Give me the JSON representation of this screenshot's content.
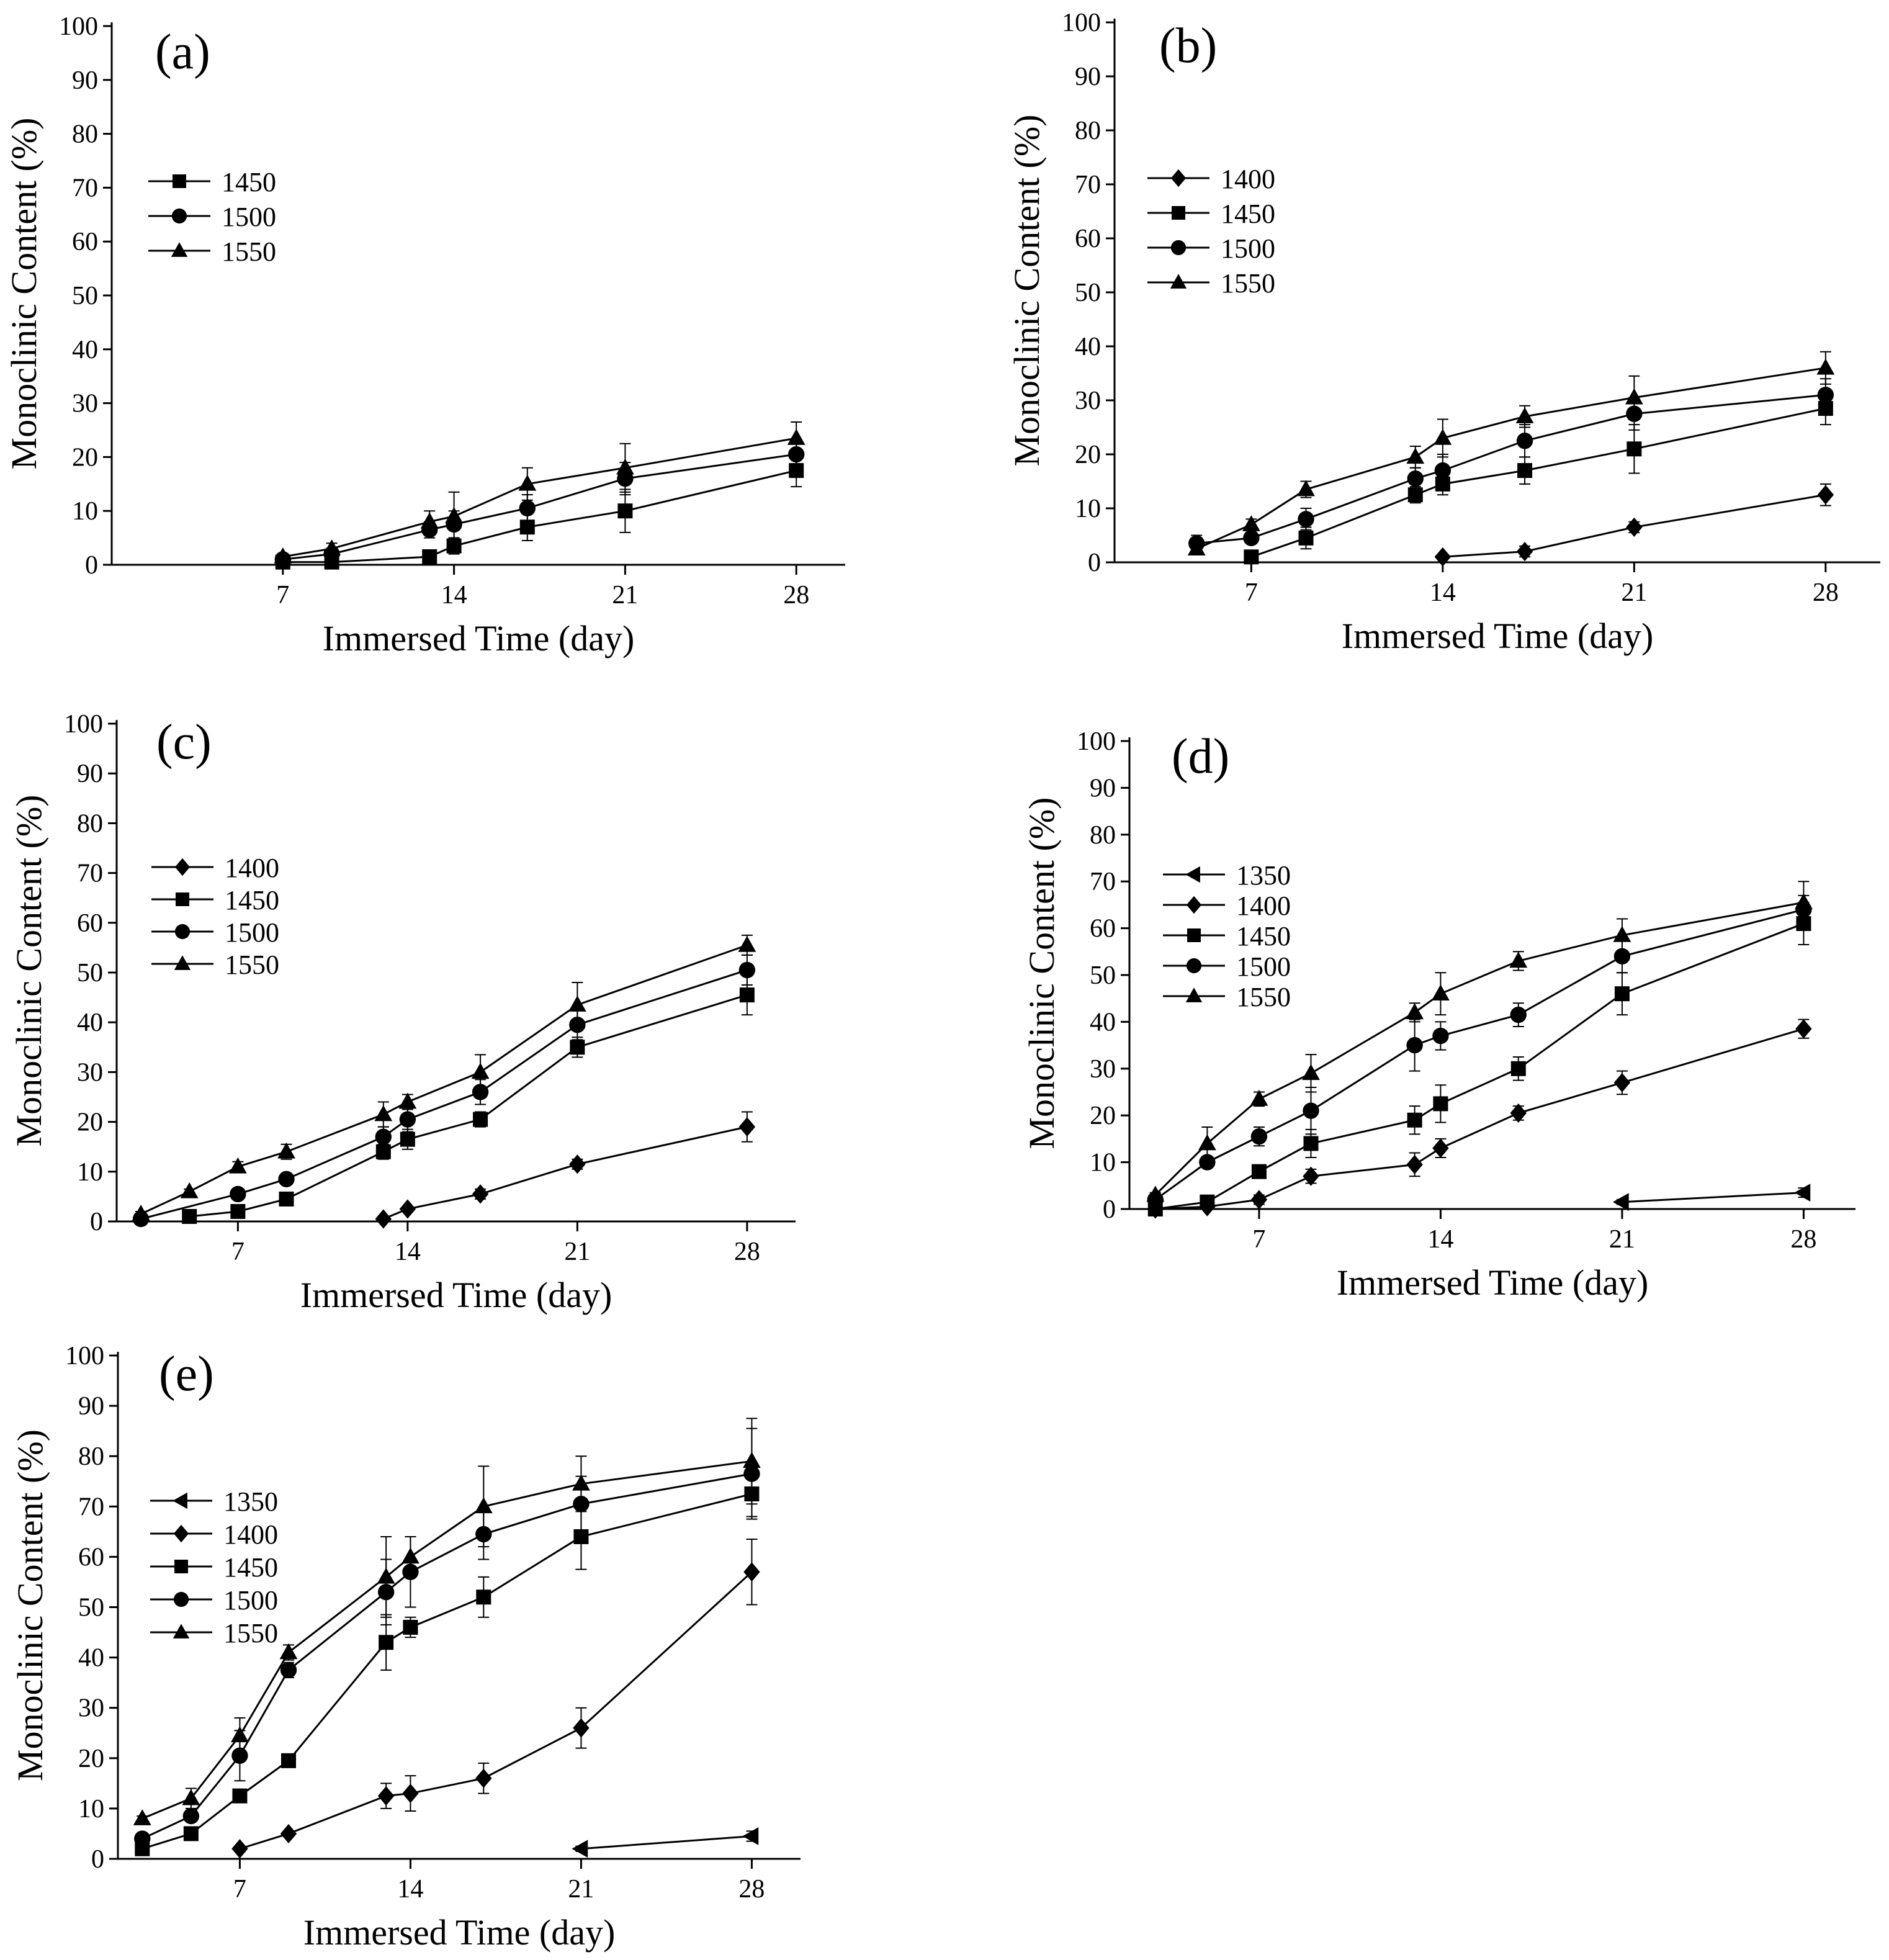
{
  "figure": {
    "panels": [
      {
        "id": "a",
        "label": "(a)"
      },
      {
        "id": "b",
        "label": "(b)"
      },
      {
        "id": "c",
        "label": "(c)"
      },
      {
        "id": "d",
        "label": "(d)"
      },
      {
        "id": "e",
        "label": "(e)"
      }
    ]
  },
  "chart_data": [
    {
      "panel": "(a)",
      "type": "line",
      "xlabel": "Immersed Time (day)",
      "ylabel": "Monoclinic Content (%)",
      "xlim": [
        0,
        30
      ],
      "ylim": [
        0,
        100
      ],
      "xticks": [
        7,
        14,
        21,
        28
      ],
      "yticks": [
        0,
        10,
        20,
        30,
        40,
        50,
        60,
        70,
        80,
        90,
        100
      ],
      "legend_position": "upper-left",
      "series": [
        {
          "name": "1450",
          "marker": "square",
          "points": [
            [
              7,
              0.5
            ],
            [
              9,
              0.5
            ],
            [
              13,
              1.5
            ],
            [
              14,
              3.5
            ],
            [
              17,
              7
            ],
            [
              21,
              10
            ],
            [
              28,
              17.5
            ]
          ],
          "errors": [
            0.5,
            0.5,
            1,
            1.5,
            2.5,
            4,
            3
          ]
        },
        {
          "name": "1500",
          "marker": "circle",
          "points": [
            [
              7,
              1
            ],
            [
              9,
              2
            ],
            [
              13,
              6.5
            ],
            [
              14,
              7.5
            ],
            [
              17,
              10.5
            ],
            [
              21,
              16
            ],
            [
              28,
              20.5
            ]
          ],
          "errors": [
            0.5,
            1,
            1.5,
            2.5,
            2.5,
            3,
            2
          ]
        },
        {
          "name": "1550",
          "marker": "triangle-up",
          "points": [
            [
              7,
              1.5
            ],
            [
              9,
              3
            ],
            [
              13,
              8
            ],
            [
              14,
              9
            ],
            [
              17,
              15
            ],
            [
              21,
              18
            ],
            [
              28,
              23.5
            ]
          ],
          "errors": [
            0.5,
            1,
            2,
            4.5,
            3,
            4.5,
            3
          ]
        }
      ]
    },
    {
      "panel": "(b)",
      "type": "line",
      "xlabel": "Immersed Time (day)",
      "ylabel": "Monoclinic Content (%)",
      "xlim": [
        2,
        30
      ],
      "ylim": [
        0,
        100
      ],
      "xticks": [
        7,
        14,
        21,
        28
      ],
      "yticks": [
        0,
        10,
        20,
        30,
        40,
        50,
        60,
        70,
        80,
        90,
        100
      ],
      "legend_position": "upper-left",
      "series": [
        {
          "name": "1400",
          "marker": "diamond",
          "points": [
            [
              14,
              1
            ],
            [
              17,
              2
            ],
            [
              21,
              6.5
            ],
            [
              28,
              12.5
            ]
          ],
          "errors": [
            0.5,
            1,
            1,
            2
          ]
        },
        {
          "name": "1450",
          "marker": "square",
          "points": [
            [
              7,
              1
            ],
            [
              9,
              4.5
            ],
            [
              13,
              12.5
            ],
            [
              14,
              14.5
            ],
            [
              17,
              17
            ],
            [
              21,
              21
            ],
            [
              28,
              28.5
            ]
          ],
          "errors": [
            0.5,
            2,
            1.5,
            2,
            2.5,
            4.5,
            3
          ]
        },
        {
          "name": "1500",
          "marker": "circle",
          "points": [
            [
              5,
              3.5
            ],
            [
              7,
              4.5
            ],
            [
              9,
              8
            ],
            [
              13,
              15.5
            ],
            [
              14,
              17
            ],
            [
              17,
              22.5
            ],
            [
              21,
              27.5
            ],
            [
              28,
              31
            ]
          ],
          "errors": [
            1.5,
            1,
            2,
            2,
            3,
            3,
            3,
            3
          ]
        },
        {
          "name": "1550",
          "marker": "triangle-up",
          "points": [
            [
              5,
              2.5
            ],
            [
              7,
              7
            ],
            [
              9,
              13.5
            ],
            [
              13,
              19.5
            ],
            [
              14,
              23
            ],
            [
              17,
              27
            ],
            [
              21,
              30.5
            ],
            [
              28,
              36
            ]
          ],
          "errors": [
            1,
            1,
            1.5,
            2,
            3.5,
            2,
            4,
            3
          ]
        }
      ]
    },
    {
      "panel": "(c)",
      "type": "line",
      "xlabel": "Immersed Time (day)",
      "ylabel": "Monoclinic Content (%)",
      "xlim": [
        2,
        30
      ],
      "ylim": [
        0,
        100
      ],
      "xticks": [
        7,
        14,
        21,
        28
      ],
      "yticks": [
        0,
        10,
        20,
        30,
        40,
        50,
        60,
        70,
        80,
        90,
        100
      ],
      "legend_position": "upper-left",
      "series": [
        {
          "name": "1400",
          "marker": "diamond",
          "points": [
            [
              13,
              0.5
            ],
            [
              14,
              2.5
            ],
            [
              17,
              5.5
            ],
            [
              21,
              11.5
            ],
            [
              28,
              19
            ]
          ],
          "errors": [
            0.5,
            0.5,
            1,
            1,
            3
          ]
        },
        {
          "name": "1450",
          "marker": "square",
          "points": [
            [
              5,
              1
            ],
            [
              7,
              2
            ],
            [
              9,
              4.5
            ],
            [
              13,
              14
            ],
            [
              14,
              16.5
            ],
            [
              17,
              20.5
            ],
            [
              21,
              35
            ],
            [
              28,
              45.5
            ]
          ],
          "errors": [
            0.5,
            0.5,
            1,
            1.5,
            2,
            1.5,
            2,
            4
          ]
        },
        {
          "name": "1500",
          "marker": "circle",
          "points": [
            [
              3,
              0.5
            ],
            [
              7,
              5.5
            ],
            [
              9,
              8.5
            ],
            [
              13,
              17
            ],
            [
              14,
              20.5
            ],
            [
              17,
              26
            ],
            [
              21,
              39.5
            ],
            [
              28,
              50.5
            ]
          ],
          "errors": [
            0.5,
            1,
            1,
            2,
            2.5,
            2.5,
            3,
            3
          ]
        },
        {
          "name": "1550",
          "marker": "triangle-up",
          "points": [
            [
              3,
              1.5
            ],
            [
              5,
              6
            ],
            [
              7,
              11
            ],
            [
              9,
              14
            ],
            [
              13,
              21.5
            ],
            [
              14,
              24
            ],
            [
              17,
              30
            ],
            [
              21,
              43.5
            ],
            [
              28,
              55.5
            ]
          ],
          "errors": [
            0.5,
            0.5,
            1,
            1.5,
            2.5,
            1.5,
            3.5,
            4.5,
            2
          ]
        }
      ]
    },
    {
      "panel": "(d)",
      "type": "line",
      "xlabel": "Immersed Time (day)",
      "ylabel": "Monoclinic Content (%)",
      "xlim": [
        2,
        30
      ],
      "ylim": [
        0,
        100
      ],
      "xticks": [
        7,
        14,
        21,
        28
      ],
      "yticks": [
        0,
        10,
        20,
        30,
        40,
        50,
        60,
        70,
        80,
        90,
        100
      ],
      "legend_position": "upper-left",
      "series": [
        {
          "name": "1350",
          "marker": "triangle-left",
          "points": [
            [
              21,
              1.5
            ],
            [
              28,
              3.5
            ]
          ],
          "errors": [
            0.5,
            1
          ]
        },
        {
          "name": "1400",
          "marker": "diamond",
          "points": [
            [
              3,
              0
            ],
            [
              5,
              0.5
            ],
            [
              7,
              2
            ],
            [
              9,
              7
            ],
            [
              13,
              9.5
            ],
            [
              14,
              13
            ],
            [
              17,
              20.5
            ],
            [
              21,
              27
            ],
            [
              28,
              38.5
            ]
          ],
          "errors": [
            0.5,
            0.5,
            1,
            1.5,
            2.5,
            2,
            1.5,
            2.5,
            2
          ]
        },
        {
          "name": "1450",
          "marker": "square",
          "points": [
            [
              3,
              0
            ],
            [
              5,
              1.5
            ],
            [
              7,
              8
            ],
            [
              9,
              14
            ],
            [
              13,
              19
            ],
            [
              14,
              22.5
            ],
            [
              17,
              30
            ],
            [
              21,
              46
            ],
            [
              28,
              61
            ]
          ],
          "errors": [
            0.5,
            0.5,
            1,
            3,
            3,
            4,
            2.5,
            4.5,
            4.5
          ]
        },
        {
          "name": "1500",
          "marker": "circle",
          "points": [
            [
              3,
              2
            ],
            [
              5,
              10
            ],
            [
              7,
              15.5
            ],
            [
              9,
              21
            ],
            [
              13,
              35
            ],
            [
              14,
              37
            ],
            [
              17,
              41.5
            ],
            [
              21,
              54
            ],
            [
              28,
              64
            ]
          ],
          "errors": [
            0.5,
            1,
            2,
            5,
            5.5,
            3,
            2.5,
            3.5,
            3
          ]
        },
        {
          "name": "1550",
          "marker": "triangle-up",
          "points": [
            [
              3,
              3
            ],
            [
              5,
              14
            ],
            [
              7,
              23.5
            ],
            [
              9,
              29
            ],
            [
              13,
              42
            ],
            [
              14,
              46
            ],
            [
              17,
              53
            ],
            [
              21,
              58.5
            ],
            [
              28,
              65.5
            ]
          ],
          "errors": [
            0.5,
            3.5,
            1.5,
            4,
            2,
            4.5,
            2,
            3.5,
            4.5
          ]
        }
      ]
    },
    {
      "panel": "(e)",
      "type": "line",
      "xlabel": "Immersed Time (day)",
      "ylabel": "Monoclinic Content (%)",
      "xlim": [
        2,
        30
      ],
      "ylim": [
        0,
        100
      ],
      "xticks": [
        7,
        14,
        21,
        28
      ],
      "yticks": [
        0,
        10,
        20,
        30,
        40,
        50,
        60,
        70,
        80,
        90,
        100
      ],
      "legend_position": "upper-left",
      "series": [
        {
          "name": "1350",
          "marker": "triangle-left",
          "points": [
            [
              21,
              2
            ],
            [
              28,
              4.5
            ]
          ],
          "errors": [
            0.5,
            1
          ]
        },
        {
          "name": "1400",
          "marker": "diamond",
          "points": [
            [
              7,
              2
            ],
            [
              9,
              5
            ],
            [
              13,
              12.5
            ],
            [
              14,
              13
            ],
            [
              17,
              16
            ],
            [
              21,
              26
            ],
            [
              28,
              57
            ]
          ],
          "errors": [
            0.5,
            0.5,
            2.5,
            3.5,
            3,
            4,
            6.5
          ]
        },
        {
          "name": "1450",
          "marker": "square",
          "points": [
            [
              3,
              2
            ],
            [
              5,
              5
            ],
            [
              7,
              12.5
            ],
            [
              9,
              19.5
            ],
            [
              13,
              43
            ],
            [
              14,
              46
            ],
            [
              17,
              52
            ],
            [
              21,
              64
            ],
            [
              28,
              72.5
            ]
          ],
          "errors": [
            0.5,
            1,
            1,
            1,
            5.5,
            2,
            4,
            6.5,
            4.5
          ]
        },
        {
          "name": "1500",
          "marker": "circle",
          "points": [
            [
              3,
              4
            ],
            [
              5,
              8.5
            ],
            [
              7,
              20.5
            ],
            [
              9,
              37.5
            ],
            [
              13,
              53
            ],
            [
              14,
              57
            ],
            [
              17,
              64.5
            ],
            [
              21,
              70.5
            ],
            [
              28,
              76.5
            ]
          ],
          "errors": [
            0.5,
            1,
            5,
            1.5,
            6.5,
            7,
            5,
            5.5,
            9
          ]
        },
        {
          "name": "1550",
          "marker": "triangle-up",
          "points": [
            [
              3,
              8
            ],
            [
              5,
              12
            ],
            [
              7,
              24.5
            ],
            [
              9,
              41
            ],
            [
              13,
              56
            ],
            [
              14,
              60
            ],
            [
              17,
              70
            ],
            [
              21,
              74.5
            ],
            [
              28,
              79
            ]
          ],
          "errors": [
            0.5,
            2,
            3.5,
            1.5,
            8,
            4,
            8,
            5.5,
            8.5
          ]
        }
      ]
    }
  ]
}
